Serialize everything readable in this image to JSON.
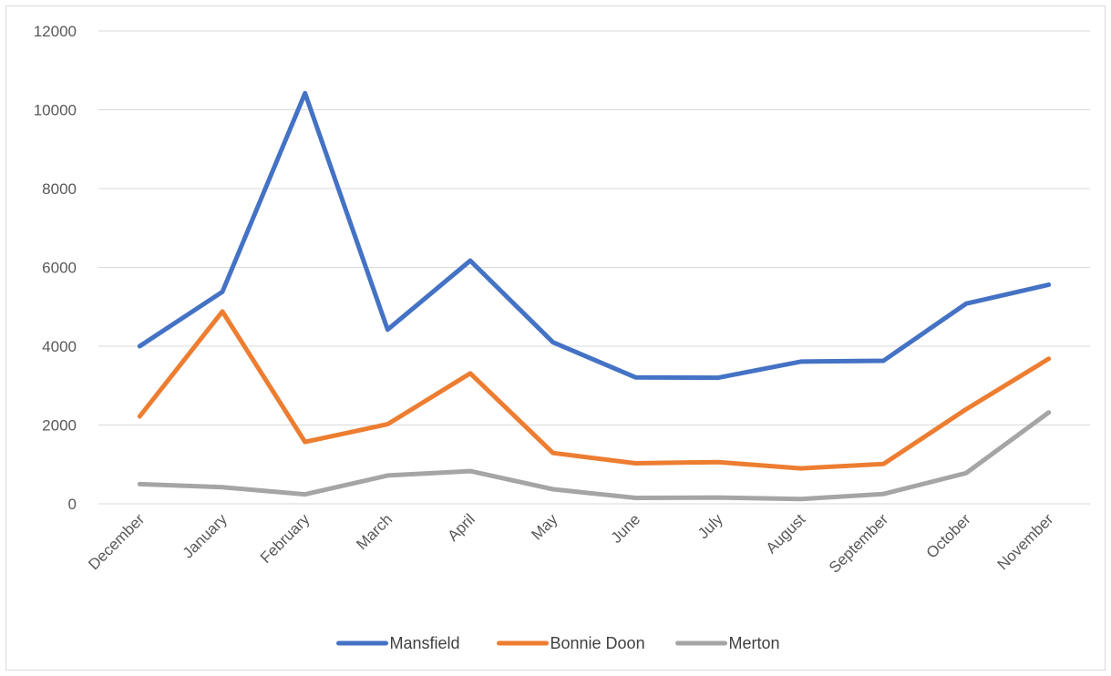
{
  "chart_data": {
    "type": "line",
    "title": "",
    "xlabel": "",
    "ylabel": "",
    "categories": [
      "December",
      "January",
      "February",
      "March",
      "April",
      "May",
      "June",
      "July",
      "August",
      "September",
      "October",
      "November"
    ],
    "ylim": [
      0,
      12000
    ],
    "yticks": [
      0,
      2000,
      4000,
      6000,
      8000,
      10000,
      12000
    ],
    "grid": "horizontal",
    "legend": "bottom",
    "series": [
      {
        "name": "Mansfield",
        "color": "#4472C4",
        "values": [
          4000,
          5380,
          10420,
          4420,
          6170,
          4100,
          3210,
          3200,
          3610,
          3630,
          5080,
          5560
        ]
      },
      {
        "name": "Bonnie Doon",
        "color": "#ED7D31",
        "values": [
          2220,
          4880,
          1570,
          2020,
          3310,
          1290,
          1030,
          1060,
          900,
          1010,
          2400,
          3680
        ]
      },
      {
        "name": "Merton",
        "color": "#A5A5A5",
        "values": [
          500,
          420,
          240,
          720,
          830,
          370,
          150,
          160,
          120,
          250,
          780,
          2320
        ]
      }
    ]
  }
}
